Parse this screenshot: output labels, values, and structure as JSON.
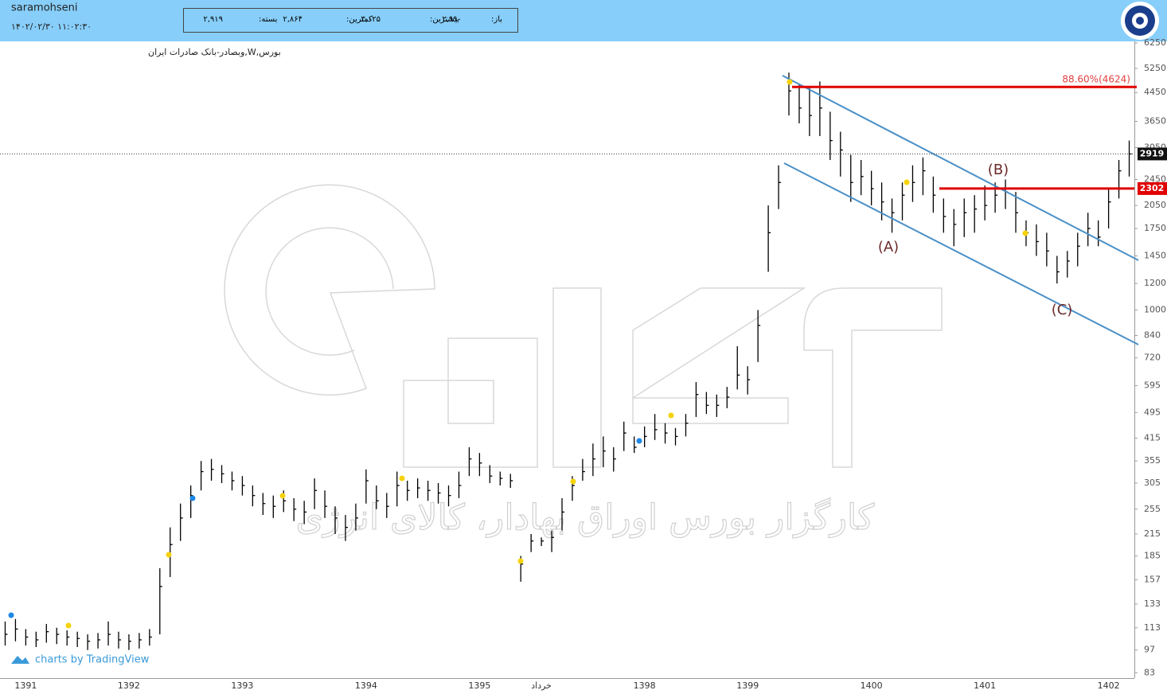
{
  "header": {
    "user": "saramohseni",
    "datetime": "۱۴۰۲/۰۲/۳۰ ۱۱:۰۲:۳۰",
    "quote": [
      {
        "label": "باز:",
        "value": "۲,۹۹۰"
      },
      {
        "label": "بیشترین:",
        "value": "۳,۰۲۵"
      },
      {
        "label": "کمترین:",
        "value": "۲,۸۶۴"
      },
      {
        "label": "بسته:",
        "value": "۲,۹۱۹"
      }
    ]
  },
  "chart_data": {
    "type": "hlc",
    "symbol": "بورس,W,وبصادر-بانک صادرات ایران",
    "credit": "charts by TradingView",
    "watermark": "کارگزار بورس اوراق بهادار، کالای انرژی",
    "log_scale": true,
    "grid": false,
    "color": "#000000",
    "categories": [
      null,
      null,
      "1391",
      null,
      null,
      null,
      null,
      null,
      null,
      null,
      null,
      null,
      "1392",
      null,
      null,
      null,
      null,
      null,
      null,
      null,
      null,
      null,
      null,
      "1393",
      null,
      null,
      null,
      null,
      null,
      null,
      null,
      null,
      null,
      null,
      null,
      "1394",
      null,
      null,
      null,
      null,
      null,
      null,
      null,
      null,
      null,
      null,
      "1395",
      null,
      null,
      null,
      null,
      null,
      "خرداد",
      null,
      null,
      null,
      null,
      null,
      null,
      null,
      null,
      null,
      "1398",
      null,
      null,
      null,
      null,
      null,
      null,
      null,
      null,
      null,
      "1399",
      null,
      null,
      null,
      null,
      null,
      null,
      null,
      null,
      null,
      null,
      null,
      "1400",
      null,
      null,
      null,
      null,
      null,
      null,
      null,
      null,
      null,
      null,
      "1401",
      null,
      null,
      null,
      null,
      null,
      null,
      null,
      null,
      null,
      null,
      null,
      "1402",
      null,
      null
    ],
    "values": [
      108,
      112,
      106,
      104,
      110,
      108,
      106,
      105,
      103,
      104,
      108,
      104,
      103,
      104,
      106,
      150,
      200,
      240,
      280,
      330,
      335,
      325,
      310,
      300,
      280,
      265,
      260,
      270,
      255,
      250,
      290,
      260,
      240,
      225,
      240,
      310,
      270,
      260,
      300,
      290,
      295,
      290,
      285,
      280,
      300,
      360,
      350,
      320,
      315,
      310,
      175,
      205,
      205,
      210,
      250,
      300,
      330,
      360,
      380,
      360,
      430,
      390,
      420,
      440,
      430,
      420,
      460,
      560,
      520,
      520,
      550,
      640,
      620,
      900,
      1700,
      2400,
      4500,
      4000,
      3800,
      4000,
      3200,
      3000,
      2400,
      2500,
      2300,
      2100,
      1950,
      2200,
      2400,
      2600,
      2200,
      1900,
      1800,
      1950,
      2000,
      2050,
      2200,
      2250,
      1950,
      1700,
      1600,
      1500,
      1300,
      1400,
      1550,
      1750,
      1650,
      2100,
      2600,
      2919
    ],
    "high": [
      118,
      120,
      112,
      110,
      116,
      113,
      111,
      110,
      108,
      109,
      118,
      110,
      108,
      109,
      112,
      170,
      225,
      265,
      300,
      355,
      360,
      345,
      330,
      320,
      300,
      285,
      280,
      290,
      275,
      270,
      315,
      290,
      260,
      245,
      265,
      335,
      300,
      285,
      330,
      310,
      315,
      310,
      305,
      300,
      330,
      390,
      375,
      345,
      330,
      325,
      185,
      215,
      210,
      220,
      275,
      320,
      360,
      400,
      420,
      390,
      465,
      420,
      450,
      490,
      460,
      445,
      490,
      610,
      570,
      560,
      590,
      780,
      680,
      1000,
      2050,
      2700,
      5100,
      4700,
      4600,
      4800,
      3900,
      3400,
      2900,
      2800,
      2600,
      2400,
      2150,
      2400,
      2700,
      2850,
      2500,
      2150,
      2000,
      2150,
      2200,
      2350,
      2400,
      2450,
      2250,
      1850,
      1800,
      1700,
      1450,
      1500,
      1700,
      1950,
      1850,
      2300,
      2800,
      3200
    ],
    "low": [
      100,
      103,
      100,
      99,
      102,
      101,
      100,
      99,
      97,
      98,
      100,
      98,
      97,
      98,
      100,
      108,
      160,
      205,
      240,
      290,
      310,
      305,
      290,
      280,
      260,
      245,
      240,
      250,
      235,
      230,
      255,
      240,
      215,
      205,
      220,
      265,
      255,
      240,
      260,
      270,
      275,
      270,
      265,
      260,
      275,
      320,
      320,
      305,
      300,
      295,
      155,
      190,
      198,
      190,
      220,
      270,
      310,
      320,
      340,
      330,
      380,
      375,
      390,
      410,
      400,
      395,
      420,
      480,
      490,
      480,
      510,
      580,
      560,
      700,
      1300,
      2000,
      3800,
      3600,
      3300,
      3300,
      2800,
      2500,
      2100,
      2200,
      2050,
      1850,
      1700,
      1850,
      2100,
      2200,
      1950,
      1700,
      1550,
      1650,
      1700,
      1850,
      1950,
      2000,
      1700,
      1550,
      1450,
      1350,
      1200,
      1250,
      1350,
      1550,
      1550,
      1750,
      2150,
      2500
    ],
    "ylim": [
      80,
      6320
    ],
    "yticks": [
      83,
      97,
      113,
      133,
      157,
      185,
      215,
      255,
      305,
      355,
      415,
      495,
      595,
      720,
      840,
      1000,
      1200,
      1450,
      1750,
      2050,
      2450,
      3050,
      3650,
      4450,
      5250,
      6250
    ],
    "last_price": 2919,
    "level": 2302,
    "fib_level": 4624,
    "fib_label": "88.60%(4624)",
    "annotations": [
      "(A)",
      "(B)",
      "(C)"
    ]
  }
}
